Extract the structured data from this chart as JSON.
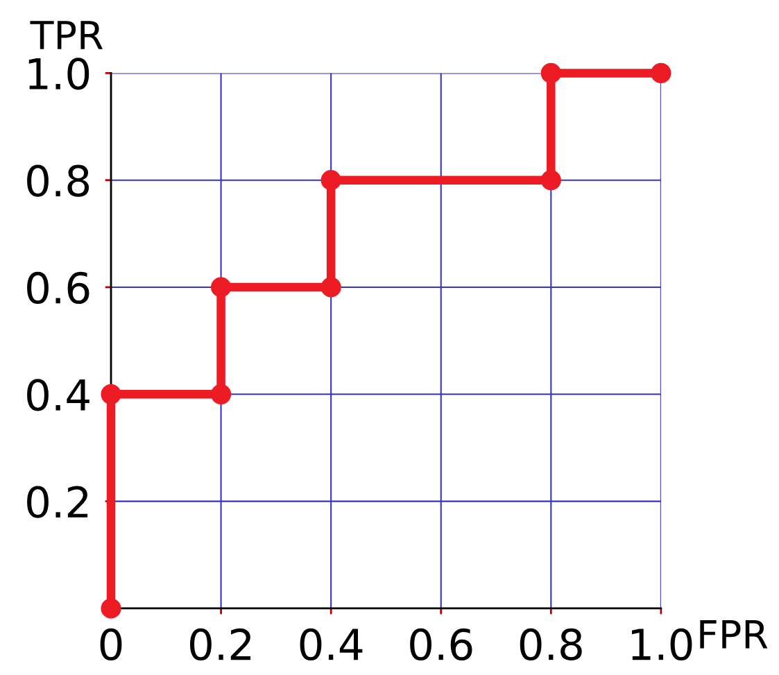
{
  "chart_data": {
    "type": "line",
    "xlabel": "FPR",
    "ylabel": "TPR",
    "series": [
      {
        "color": "#ed1c24",
        "x": [
          0,
          0,
          0.2,
          0.2,
          0.4,
          0.4,
          0.8,
          0.8,
          1.0
        ],
        "values": [
          0,
          0.4,
          0.4,
          0.6,
          0.6,
          0.8,
          0.8,
          1.0,
          1.0
        ]
      }
    ],
    "xlim": [
      0,
      1.0
    ],
    "ylim": [
      0,
      1.0
    ],
    "xticks": [
      0,
      0.2,
      0.4,
      0.6,
      0.8,
      {
        "value": 1.0,
        "label": "1.0"
      }
    ],
    "yticks": [
      {
        "value": 0,
        "label": null
      },
      0.2,
      0.4,
      0.6,
      0.8,
      {
        "value": 1.0,
        "label": "1.0"
      }
    ],
    "grid": true,
    "marker": "circle",
    "line_style": "solid"
  }
}
